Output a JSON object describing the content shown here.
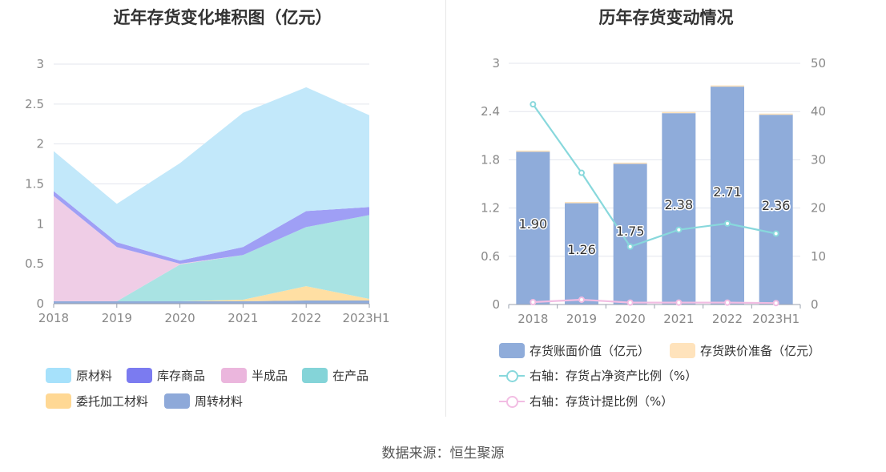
{
  "source_text": "数据来源：恒生聚源",
  "chart_data": [
    {
      "type": "area",
      "stacked": true,
      "title": "近年存货变化堆积图（亿元）",
      "categories": [
        "2018",
        "2019",
        "2020",
        "2021",
        "2022",
        "2023H1"
      ],
      "ylim": [
        0,
        3
      ],
      "yticks": [
        "0",
        "0.5",
        "1",
        "1.5",
        "2",
        "2.5",
        "3"
      ],
      "grid": true,
      "legend_position": "bottom",
      "series": [
        {
          "name": "周转材料",
          "color": "#91acda",
          "values": [
            0.03,
            0.03,
            0.03,
            0.03,
            0.04,
            0.04
          ]
        },
        {
          "name": "委托加工材料",
          "color": "#ffdfa3",
          "values": [
            0.0,
            0.0,
            0.0,
            0.02,
            0.18,
            0.02
          ]
        },
        {
          "name": "在产品",
          "color": "#a9e3e3",
          "values": [
            0.0,
            0.0,
            0.46,
            0.56,
            0.74,
            1.05
          ]
        },
        {
          "name": "半成品",
          "color": "#efcde6",
          "values": [
            1.32,
            0.68,
            0.01,
            0.0,
            0.0,
            0.0
          ]
        },
        {
          "name": "库存商品",
          "color": "#9f9ff5",
          "values": [
            0.06,
            0.06,
            0.04,
            0.1,
            0.2,
            0.1
          ]
        },
        {
          "name": "原材料",
          "color": "#c2e8fa",
          "values": [
            0.5,
            0.48,
            1.22,
            1.68,
            1.55,
            1.15
          ]
        }
      ],
      "legend": [
        {
          "name": "原材料",
          "color": "#a6e1fb"
        },
        {
          "name": "库存商品",
          "color": "#7b7bf0"
        },
        {
          "name": "半成品",
          "color": "#ebb6dd"
        },
        {
          "name": "在产品",
          "color": "#84d4d8"
        },
        {
          "name": "委托加工材料",
          "color": "#ffd894"
        },
        {
          "name": "周转材料",
          "color": "#8ea9d9"
        }
      ]
    },
    {
      "type": "bar+line",
      "title": "历年存货变动情况",
      "categories": [
        "2018",
        "2019",
        "2020",
        "2021",
        "2022",
        "2023H1"
      ],
      "ylim_left": [
        0,
        3
      ],
      "yticks_left": [
        "0",
        "0.6",
        "1.2",
        "1.8",
        "2.4",
        "3"
      ],
      "ylim_right": [
        0,
        50
      ],
      "yticks_right": [
        "0",
        "10",
        "20",
        "30",
        "40",
        "50"
      ],
      "grid": true,
      "legend_position": "bottom",
      "bars": [
        {
          "name": "存货账面价值（亿元）",
          "color": "#8facda",
          "values": [
            1.9,
            1.26,
            1.75,
            2.38,
            2.71,
            2.36
          ],
          "labels": [
            "1.90",
            "1.26",
            "1.75",
            "2.38",
            "2.71",
            "2.36"
          ]
        },
        {
          "name": "存货跌价准备（亿元）",
          "color": "#ffe3bc",
          "values": [
            0.01,
            0.01,
            0.01,
            0.01,
            0.01,
            0.01
          ]
        }
      ],
      "lines": [
        {
          "name": "右轴：存货占净资产比例（%）",
          "color": "#88d8dc",
          "axis": "right",
          "values": [
            41.5,
            27.3,
            12.0,
            15.5,
            16.8,
            14.7
          ]
        },
        {
          "name": "右轴：存货计提比例（%）",
          "color": "#f2bde3",
          "axis": "right",
          "values": [
            0.5,
            1.0,
            0.4,
            0.4,
            0.4,
            0.3
          ]
        }
      ]
    }
  ]
}
